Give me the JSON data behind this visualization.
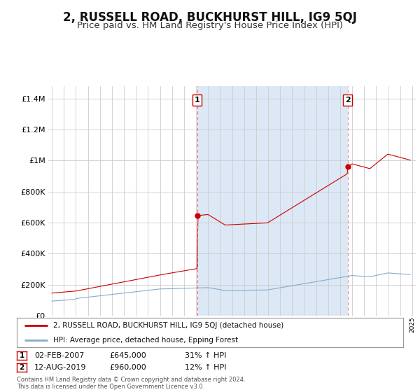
{
  "title": "2, RUSSELL ROAD, BUCKHURST HILL, IG9 5QJ",
  "subtitle": "Price paid vs. HM Land Registry's House Price Index (HPI)",
  "title_fontsize": 12,
  "subtitle_fontsize": 9.5,
  "background_color": "#ffffff",
  "grid_color": "#cccccc",
  "chart_bg_color": "#f0f4ff",
  "red_line_color": "#cc0000",
  "blue_line_color": "#88aacc",
  "shade_color": "#dce8f5",
  "sale1_date_x": 2007.09,
  "sale1_price": 645000,
  "sale1_date_str": "02-FEB-2007",
  "sale1_hpi": "31% ↑ HPI",
  "sale2_date_x": 2019.62,
  "sale2_price": 960000,
  "sale2_date_str": "12-AUG-2019",
  "sale2_hpi": "12% ↑ HPI",
  "yticks": [
    0,
    200000,
    400000,
    600000,
    800000,
    1000000,
    1200000,
    1400000
  ],
  "ylim": [
    0,
    1480000
  ],
  "xlim_left": 1994.7,
  "xlim_right": 2025.3,
  "legend_label_red": "2, RUSSELL ROAD, BUCKHURST HILL, IG9 5QJ (detached house)",
  "legend_label_blue": "HPI: Average price, detached house, Epping Forest",
  "footer": "Contains HM Land Registry data © Crown copyright and database right 2024.\nThis data is licensed under the Open Government Licence v3.0."
}
